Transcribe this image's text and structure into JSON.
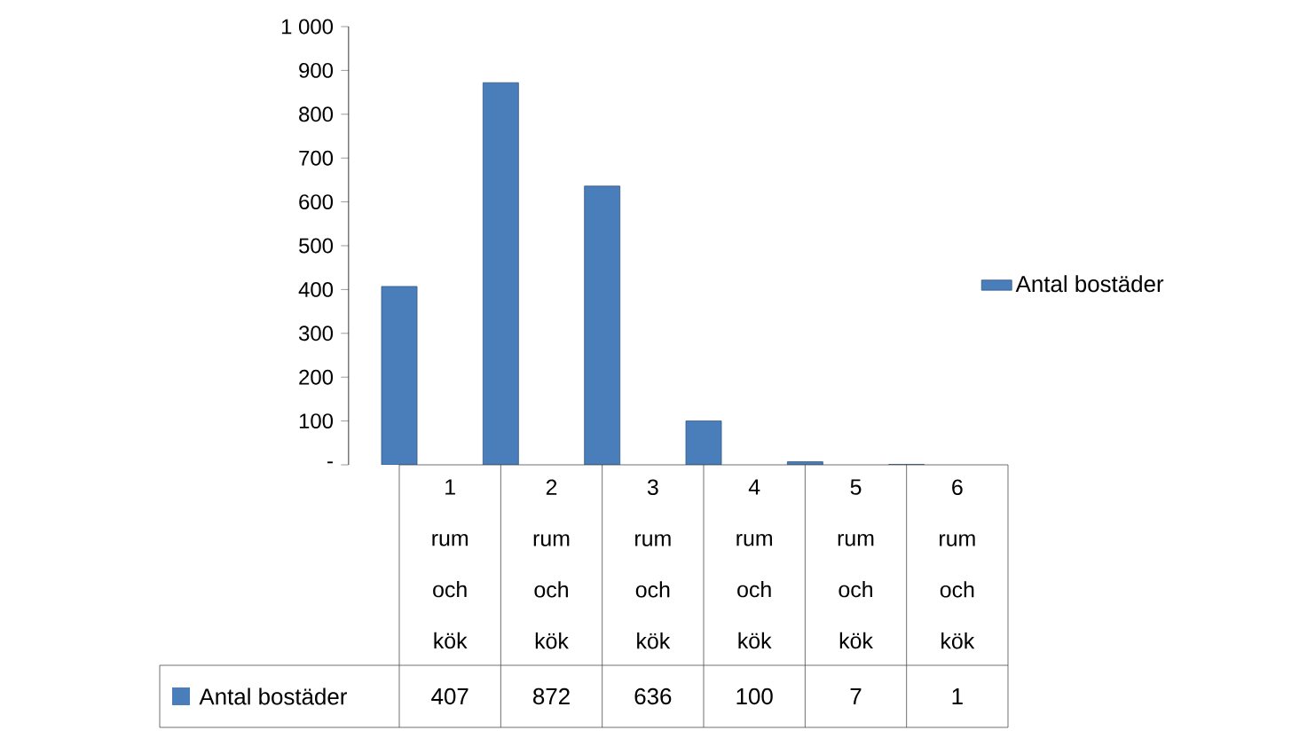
{
  "chart_data": {
    "type": "bar",
    "categories": [
      "1 rum och kök",
      "2 rum och kök",
      "3 rum och kök",
      "4 rum och kök",
      "5 rum och kök",
      "6 rum och kök"
    ],
    "series": [
      {
        "name": "Antal bostäder",
        "color": "#4a7ebb",
        "values": [
          407,
          872,
          636,
          100,
          7,
          1
        ]
      }
    ],
    "ylim": [
      0,
      1000
    ],
    "yticks": [
      {
        "value": 0,
        "label": "-"
      },
      100,
      200,
      300,
      400,
      500,
      600,
      700,
      800,
      900,
      {
        "value": 1000,
        "label": "1 000"
      }
    ],
    "data_labels": true,
    "legend": "right",
    "grid": false
  }
}
